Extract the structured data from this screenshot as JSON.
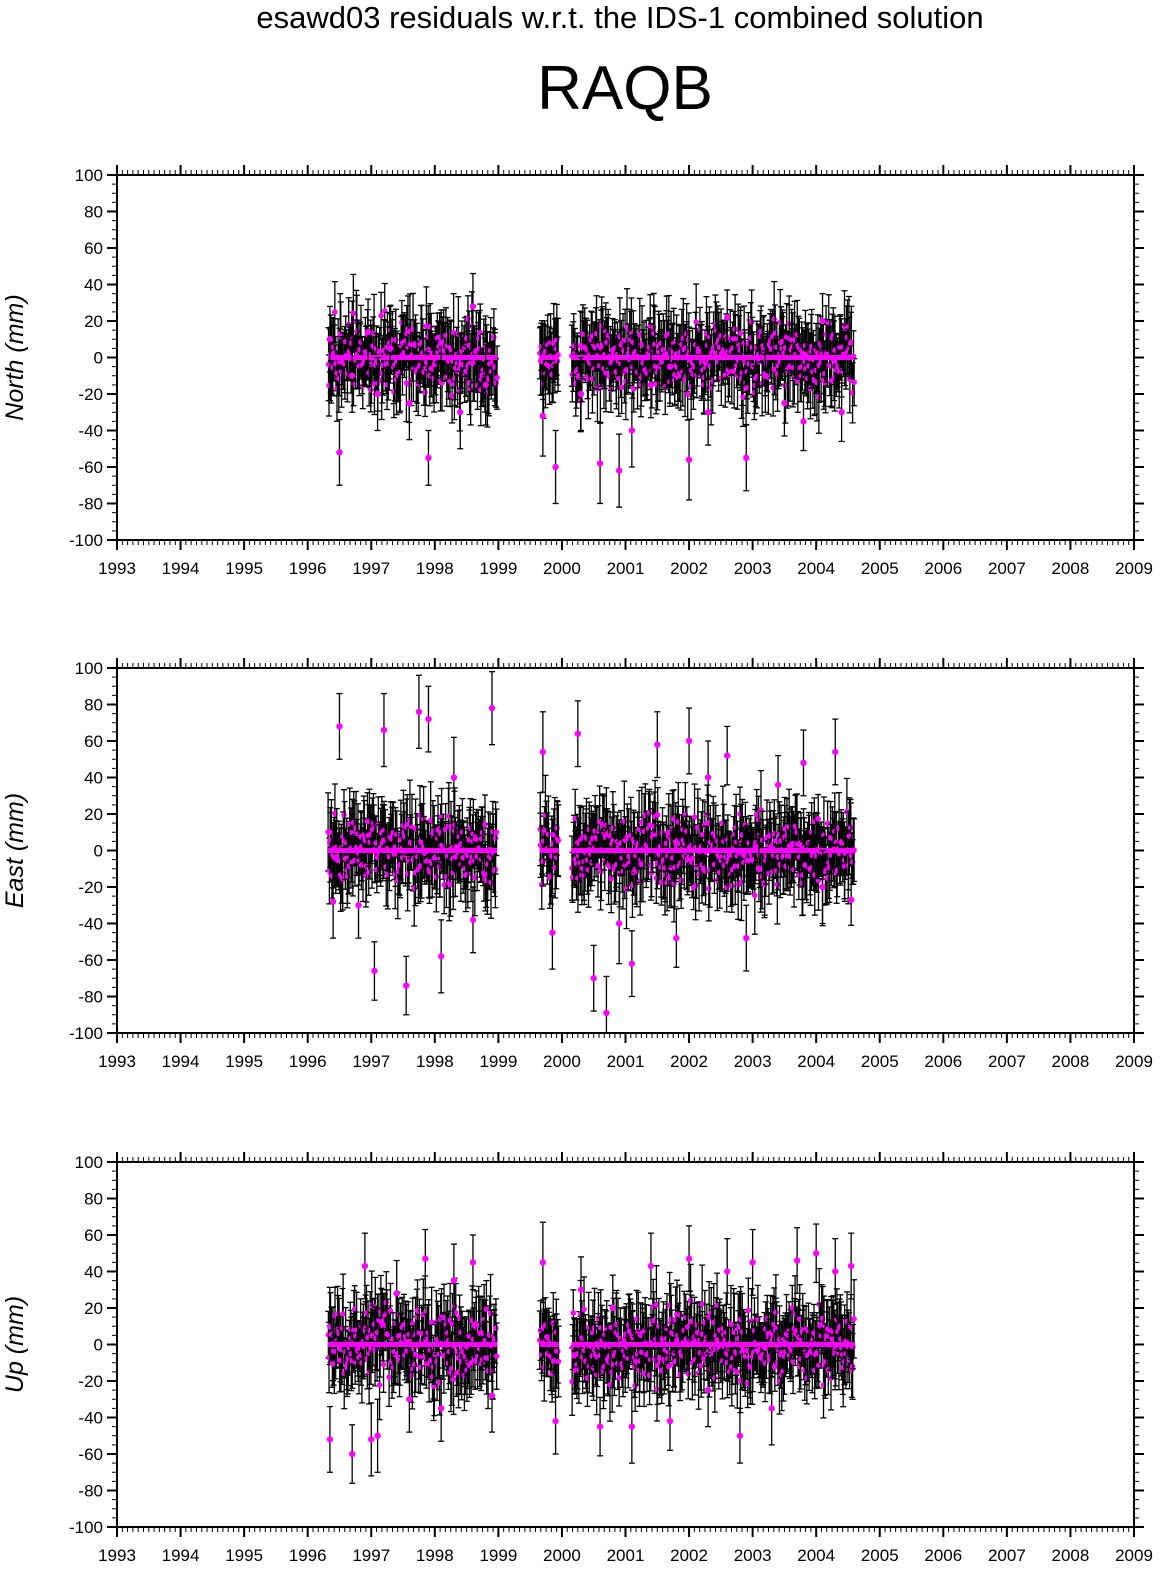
{
  "header": {
    "suptitle": "esawd03 residuals w.r.t. the IDS-1 combined solution",
    "station": "RAQB"
  },
  "colors": {
    "point": "#ff00ff",
    "errorbar": "#000000",
    "axis": "#000000"
  },
  "chart_data": [
    {
      "type": "scatter",
      "component": "North",
      "ylabel": "North (mm)",
      "xlim": [
        1993,
        2009
      ],
      "ylim": [
        -100,
        100
      ],
      "xticks": [
        "1993",
        "1994",
        "1995",
        "1996",
        "1997",
        "1998",
        "1999",
        "2000",
        "2001",
        "2002",
        "2003",
        "2004",
        "2005",
        "2006",
        "2007",
        "2008",
        "2009"
      ],
      "yticks": [
        "100",
        "80",
        "60",
        "40",
        "20",
        "0",
        "-20",
        "-40",
        "-60",
        "-80",
        "-100"
      ],
      "error_bars": true,
      "segments": [
        [
          1996.32,
          1998.98
        ],
        [
          1999.65,
          1999.95
        ],
        [
          2000.15,
          2004.6
        ]
      ],
      "series": [
        {
          "x": [
            1996.35,
            1996.5,
            1996.7,
            1996.95,
            1997.1,
            1997.3,
            1997.6,
            1997.9,
            1998.1,
            1998.4,
            1998.6,
            1998.8,
            1999.7,
            1999.9,
            2000.3,
            2000.6,
            2000.9,
            2001.1,
            2001.4,
            2001.7,
            2002.0,
            2002.3,
            2002.6,
            2002.9,
            2003.2,
            2003.5,
            2003.8,
            2004.1,
            2004.4
          ],
          "y": [
            10,
            -52,
            -10,
            14,
            -20,
            5,
            -25,
            -55,
            8,
            -30,
            28,
            -15,
            -32,
            -60,
            -20,
            -58,
            -62,
            -40,
            -15,
            -5,
            -56,
            -30,
            22,
            -55,
            -10,
            -25,
            -35,
            20,
            -30
          ],
          "err": [
            18,
            18,
            20,
            18,
            20,
            19,
            20,
            15,
            18,
            20,
            18,
            22,
            22,
            20,
            20,
            22,
            20,
            20,
            18,
            20,
            22,
            18,
            15,
            18,
            20,
            18,
            16,
            15,
            16
          ]
        }
      ]
    },
    {
      "type": "scatter",
      "component": "East",
      "ylabel": "East (mm)",
      "xlim": [
        1993,
        2009
      ],
      "ylim": [
        -100,
        100
      ],
      "xticks": [
        "1993",
        "1994",
        "1995",
        "1996",
        "1997",
        "1998",
        "1999",
        "2000",
        "2001",
        "2002",
        "2003",
        "2004",
        "2005",
        "2006",
        "2007",
        "2008",
        "2009"
      ],
      "yticks": [
        "100",
        "80",
        "60",
        "40",
        "20",
        "0",
        "-20",
        "-40",
        "-60",
        "-80",
        "-100"
      ],
      "error_bars": true,
      "segments": [
        [
          1996.32,
          1998.98
        ],
        [
          1999.65,
          1999.95
        ],
        [
          2000.15,
          2004.6
        ]
      ],
      "series": [
        {
          "x": [
            1996.4,
            1996.5,
            1996.8,
            1997.05,
            1997.2,
            1997.55,
            1997.75,
            1997.9,
            1998.1,
            1998.3,
            1998.6,
            1998.9,
            1999.7,
            1999.85,
            2000.25,
            2000.5,
            2000.7,
            2000.9,
            2001.1,
            2001.5,
            2001.8,
            2002.0,
            2002.3,
            2002.6,
            2002.9,
            2003.1,
            2003.4,
            2003.8,
            2004.1,
            2004.3,
            2004.55
          ],
          "y": [
            -28,
            68,
            -30,
            -66,
            66,
            -74,
            76,
            72,
            -58,
            40,
            -38,
            78,
            54,
            -45,
            64,
            -70,
            -89,
            -40,
            -62,
            58,
            -48,
            60,
            40,
            52,
            -48,
            -10,
            36,
            48,
            -20,
            54,
            -27
          ],
          "err": [
            20,
            18,
            18,
            16,
            20,
            16,
            20,
            18,
            20,
            22,
            18,
            20,
            22,
            20,
            18,
            18,
            20,
            22,
            18,
            18,
            16,
            18,
            20,
            16,
            18,
            18,
            16,
            18,
            20,
            18,
            14
          ]
        }
      ]
    },
    {
      "type": "scatter",
      "component": "Up",
      "ylabel": "Up (mm)",
      "xlim": [
        1993,
        2009
      ],
      "ylim": [
        -100,
        100
      ],
      "xticks": [
        "1993",
        "1994",
        "1995",
        "1996",
        "1997",
        "1998",
        "1999",
        "2000",
        "2001",
        "2002",
        "2003",
        "2004",
        "2005",
        "2006",
        "2007",
        "2008",
        "2009"
      ],
      "yticks": [
        "100",
        "80",
        "60",
        "40",
        "20",
        "0",
        "-20",
        "-40",
        "-60",
        "-80",
        "-100"
      ],
      "error_bars": true,
      "segments": [
        [
          1996.32,
          1998.98
        ],
        [
          1999.65,
          1999.95
        ],
        [
          2000.15,
          2004.6
        ]
      ],
      "series": [
        {
          "x": [
            1996.35,
            1996.7,
            1996.9,
            1997.0,
            1997.1,
            1997.4,
            1997.6,
            1997.85,
            1998.1,
            1998.3,
            1998.6,
            1998.9,
            1999.7,
            1999.9,
            2000.3,
            2000.6,
            2000.8,
            2001.1,
            2001.4,
            2001.7,
            2002.0,
            2002.3,
            2002.6,
            2002.8,
            2003.0,
            2003.3,
            2003.7,
            2004.0,
            2004.3,
            2004.55
          ],
          "y": [
            -52,
            -60,
            43,
            -52,
            -50,
            28,
            -30,
            47,
            -35,
            35,
            45,
            -28,
            45,
            -42,
            30,
            -45,
            20,
            -45,
            43,
            -42,
            47,
            -25,
            40,
            -50,
            45,
            -35,
            46,
            50,
            40,
            43
          ],
          "err": [
            18,
            16,
            18,
            20,
            20,
            18,
            18,
            16,
            18,
            20,
            15,
            20,
            22,
            18,
            18,
            16,
            18,
            20,
            18,
            16,
            18,
            20,
            18,
            15,
            18,
            20,
            18,
            16,
            18,
            18
          ]
        }
      ]
    }
  ]
}
